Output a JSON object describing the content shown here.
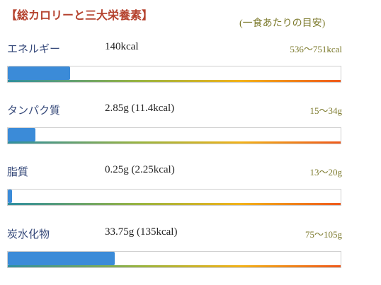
{
  "header": {
    "title": "【総カロリーと三大栄養素】",
    "subtitle": "(一食あたりの目安)"
  },
  "rows": [
    {
      "label": "エネルギー",
      "value": 140,
      "value_label": "140kcal",
      "max": 751,
      "range_label": "536〜751kcal"
    },
    {
      "label": "タンパク質",
      "value": 2.85,
      "value_label": "2.85g (11.4kcal)",
      "max": 34,
      "range_label": "15〜34g"
    },
    {
      "label": "脂質",
      "value": 0.25,
      "value_label": "0.25g (2.25kcal)",
      "max": 20,
      "range_label": "13〜20g"
    },
    {
      "label": "炭水化物",
      "value": 33.75,
      "value_label": "33.75g (135kcal)",
      "max": 105,
      "range_label": "75〜105g"
    }
  ]
}
